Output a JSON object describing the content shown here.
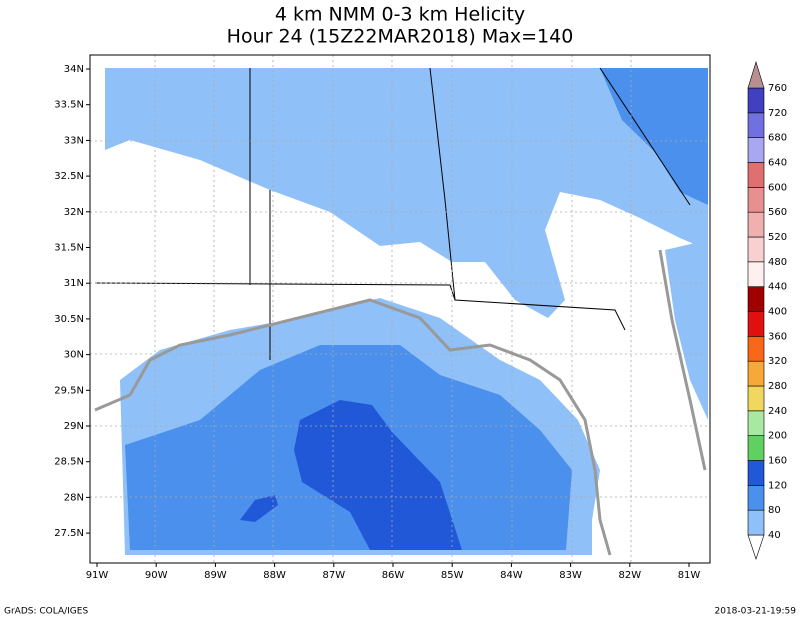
{
  "title": {
    "line1": "4 km NMM 0-3 km Helicity",
    "line2": "Hour 24 (15Z22MAR2018) Max=140"
  },
  "lon_labels": [
    "91W",
    "90W",
    "89W",
    "88W",
    "87W",
    "86W",
    "85W",
    "84W",
    "83W",
    "82W",
    "81W"
  ],
  "lat_labels": [
    "34N",
    "33.5N",
    "33N",
    "32.5N",
    "32N",
    "31.5N",
    "31N",
    "30.5N",
    "30N",
    "29.5N",
    "29N",
    "28.5N",
    "28N",
    "27.5N"
  ],
  "colorbar": {
    "levels": [
      40,
      80,
      120,
      160,
      200,
      240,
      280,
      320,
      360,
      400,
      440,
      480,
      520,
      560,
      600,
      640,
      680,
      720,
      760
    ],
    "colors": [
      "#ffffff",
      "#90c0f8",
      "#4a90ec",
      "#2058d8",
      "#60d060",
      "#a8e8a0",
      "#f0d860",
      "#f8a838",
      "#f86818",
      "#e01010",
      "#a00000",
      "#fff0f0",
      "#f8d0d0",
      "#f0b0b0",
      "#e89090",
      "#e07070",
      "#a8a8f0",
      "#7070e0",
      "#4040c0",
      "#b89090"
    ]
  },
  "footer": {
    "left": "GrADS: COLA/IGES",
    "right": "2018-03-21-19:59"
  }
}
